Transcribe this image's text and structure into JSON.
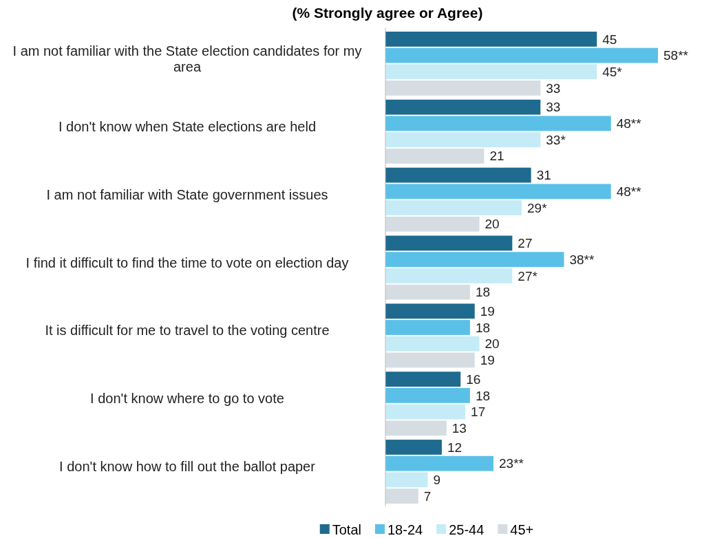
{
  "chart_data": {
    "type": "bar",
    "orientation": "horizontal",
    "title": "(% Strongly agree or Agree)",
    "categories": [
      "I am not familiar with the State election candidates for my area",
      "I don't know when State elections are held",
      "I am not familiar with State government issues",
      "I find it difficult to find the time to vote on election day",
      "It is difficult for me to travel to the voting centre",
      "I don't know where to go to vote",
      "I don't know how to fill out the ballot paper"
    ],
    "series": [
      {
        "name": "Total",
        "color": "#1f6a8f",
        "values": [
          45,
          33,
          31,
          27,
          19,
          16,
          12
        ],
        "value_labels": [
          "45",
          "33",
          "31",
          "27",
          "19",
          "16",
          "12"
        ]
      },
      {
        "name": "18-24",
        "color": "#5bc0e8",
        "values": [
          58,
          48,
          48,
          38,
          18,
          18,
          23
        ],
        "value_labels": [
          "58**",
          "48**",
          "48**",
          "38**",
          "18",
          "18",
          "23**"
        ]
      },
      {
        "name": "25-44",
        "color": "#c5ebf7",
        "values": [
          45,
          33,
          29,
          27,
          20,
          17,
          9
        ],
        "value_labels": [
          "45*",
          "33*",
          "29*",
          "27*",
          "20",
          "17",
          "9"
        ]
      },
      {
        "name": "45+",
        "color": "#d5dde2",
        "values": [
          33,
          21,
          20,
          18,
          19,
          13,
          7
        ],
        "value_labels": [
          "33",
          "21",
          "20",
          "18",
          "19",
          "13",
          "7"
        ]
      }
    ],
    "legend": "bottom",
    "grid": false
  }
}
